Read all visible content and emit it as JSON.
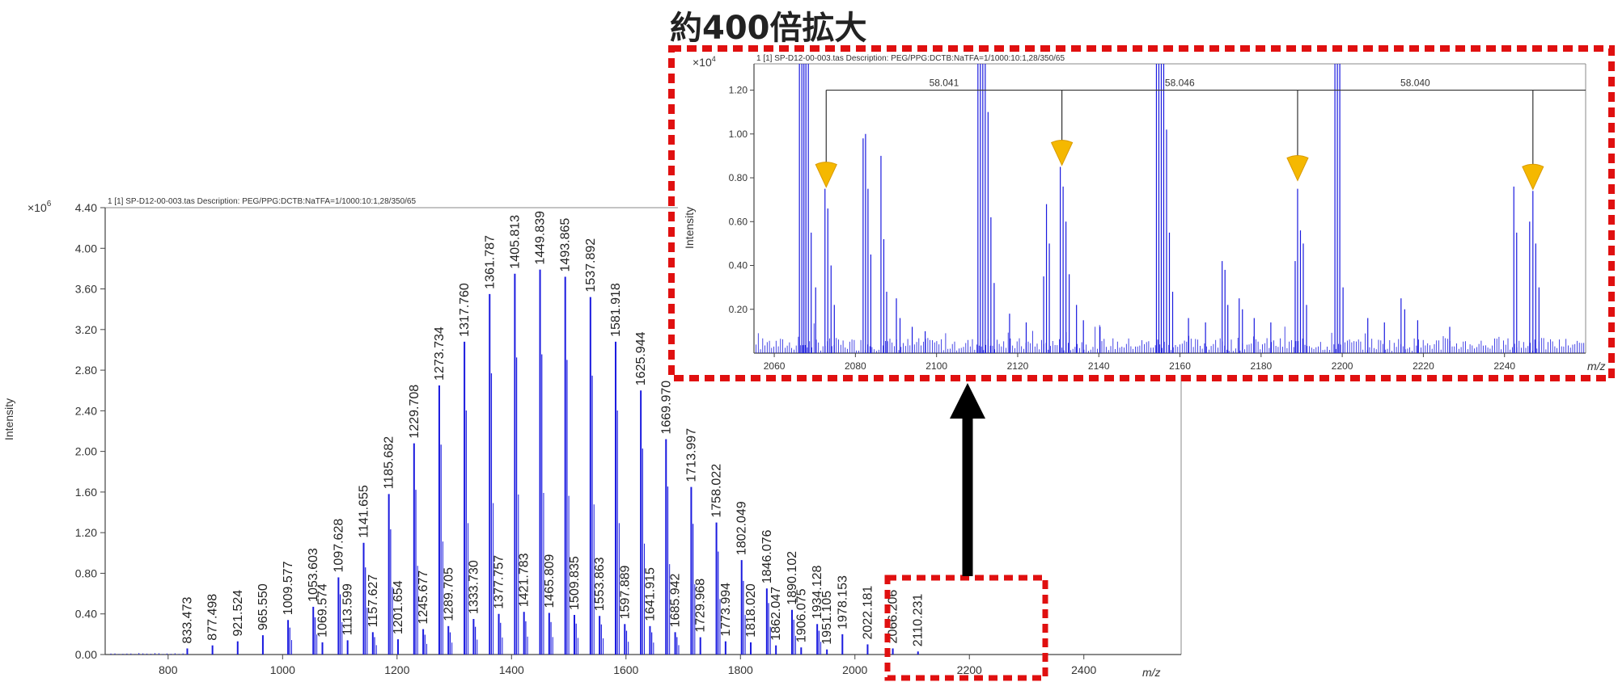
{
  "title": "約400倍拡大",
  "colors": {
    "peak": "#1a1adf",
    "marker": "#f5b800",
    "highlight": "#e01010",
    "arrow": "#000000"
  },
  "chart_data": [
    {
      "type": "bar",
      "header": "1 [1] SP-D12-00-003.tas   Description: PEG/PPG:DCTB:NaTFA=1/1000:10:1,28/350/65",
      "xlabel": "m/z",
      "ylabel": "Intensity",
      "y_multiplier": "×10",
      "y_exponent": "6",
      "xlim": [
        690,
        2570
      ],
      "ylim": [
        0,
        4.4
      ],
      "x_ticks": [
        800,
        1000,
        1200,
        1400,
        1600,
        1800,
        2000,
        2200,
        2400
      ],
      "y_ticks": [
        "0.00",
        "0.40",
        "0.80",
        "1.20",
        "1.60",
        "2.00",
        "2.40",
        "2.80",
        "3.20",
        "3.60",
        "4.00",
        "4.40"
      ],
      "labeled_peaks": [
        {
          "x": 833.473,
          "y": 0.06,
          "label": "833.473"
        },
        {
          "x": 877.498,
          "y": 0.09,
          "label": "877.498"
        },
        {
          "x": 921.524,
          "y": 0.13,
          "label": "921.524"
        },
        {
          "x": 965.55,
          "y": 0.19,
          "label": "965.550"
        },
        {
          "x": 1009.577,
          "y": 0.34,
          "label": "1009.577"
        },
        {
          "x": 1053.603,
          "y": 0.47,
          "label": "1053.603"
        },
        {
          "x": 1069.574,
          "y": 0.12,
          "label": "1069.574"
        },
        {
          "x": 1097.628,
          "y": 0.76,
          "label": "1097.628"
        },
        {
          "x": 1113.599,
          "y": 0.14,
          "label": "1113.599"
        },
        {
          "x": 1141.655,
          "y": 1.1,
          "label": "1141.655"
        },
        {
          "x": 1157.627,
          "y": 0.22,
          "label": "1157.627"
        },
        {
          "x": 1185.682,
          "y": 1.58,
          "label": "1185.682"
        },
        {
          "x": 1201.654,
          "y": 0.15,
          "label": "1201.654"
        },
        {
          "x": 1229.708,
          "y": 2.08,
          "label": "1229.708"
        },
        {
          "x": 1245.677,
          "y": 0.25,
          "label": "1245.677"
        },
        {
          "x": 1273.734,
          "y": 2.65,
          "label": "1273.734"
        },
        {
          "x": 1289.705,
          "y": 0.28,
          "label": "1289.705"
        },
        {
          "x": 1317.76,
          "y": 3.08,
          "label": "1317.760"
        },
        {
          "x": 1333.73,
          "y": 0.35,
          "label": "1333.730"
        },
        {
          "x": 1361.787,
          "y": 3.55,
          "label": "1361.787"
        },
        {
          "x": 1377.757,
          "y": 0.4,
          "label": "1377.757"
        },
        {
          "x": 1405.813,
          "y": 3.75,
          "label": "1405.813"
        },
        {
          "x": 1421.783,
          "y": 0.42,
          "label": "1421.783"
        },
        {
          "x": 1449.839,
          "y": 3.79,
          "label": "1449.839"
        },
        {
          "x": 1465.809,
          "y": 0.41,
          "label": "1465.809"
        },
        {
          "x": 1493.865,
          "y": 3.72,
          "label": "1493.865"
        },
        {
          "x": 1509.835,
          "y": 0.39,
          "label": "1509.835"
        },
        {
          "x": 1537.892,
          "y": 3.52,
          "label": "1537.892"
        },
        {
          "x": 1553.863,
          "y": 0.38,
          "label": "1553.863"
        },
        {
          "x": 1581.918,
          "y": 3.08,
          "label": "1581.918"
        },
        {
          "x": 1597.889,
          "y": 0.3,
          "label": "1597.889"
        },
        {
          "x": 1625.944,
          "y": 2.6,
          "label": "1625.944"
        },
        {
          "x": 1641.915,
          "y": 0.28,
          "label": "1641.915"
        },
        {
          "x": 1669.97,
          "y": 2.12,
          "label": "1669.970"
        },
        {
          "x": 1685.942,
          "y": 0.22,
          "label": "1685.942"
        },
        {
          "x": 1713.997,
          "y": 1.65,
          "label": "1713.997"
        },
        {
          "x": 1729.968,
          "y": 0.17,
          "label": "1729.968"
        },
        {
          "x": 1758.022,
          "y": 1.3,
          "label": "1758.022"
        },
        {
          "x": 1773.994,
          "y": 0.13,
          "label": "1773.994"
        },
        {
          "x": 1802.049,
          "y": 0.93,
          "label": "1802.049"
        },
        {
          "x": 1818.02,
          "y": 0.12,
          "label": "1818.020"
        },
        {
          "x": 1846.076,
          "y": 0.65,
          "label": "1846.076"
        },
        {
          "x": 1862.047,
          "y": 0.09,
          "label": "1862.047"
        },
        {
          "x": 1890.102,
          "y": 0.44,
          "label": "1890.102"
        },
        {
          "x": 1906.075,
          "y": 0.07,
          "label": "1906.075"
        },
        {
          "x": 1934.128,
          "y": 0.3,
          "label": "1934.128"
        },
        {
          "x": 1951.105,
          "y": 0.05,
          "label": "1951.105"
        },
        {
          "x": 1978.153,
          "y": 0.2,
          "label": "1978.153"
        },
        {
          "x": 2022.181,
          "y": 0.1,
          "label": "2022.181"
        },
        {
          "x": 2066.206,
          "y": 0.06,
          "label": "2066.206"
        },
        {
          "x": 2110.231,
          "y": 0.03,
          "label": "2110.231"
        }
      ]
    },
    {
      "type": "bar",
      "header": "1 [1] SP-D12-00-003.tas   Description: PEG/PPG:DCTB:NaTFA=1/1000:10:1,28/350/65",
      "xlabel": "m/z",
      "ylabel": "Intensity",
      "y_multiplier": "×10",
      "y_exponent": "4",
      "xlim": [
        2055,
        2260
      ],
      "ylim": [
        0,
        1.32
      ],
      "x_ticks": [
        2060,
        2080,
        2100,
        2120,
        2140,
        2160,
        2180,
        2200,
        2220,
        2240
      ],
      "y_ticks": [
        "0.20",
        "0.40",
        "0.60",
        "0.80",
        "1.00",
        "1.20"
      ],
      "spacing_y": 1.2,
      "spacings": [
        {
          "from": 2072.8,
          "to": 2130.9,
          "label": "58.041"
        },
        {
          "from": 2130.9,
          "to": 2189.0,
          "label": "58.046"
        },
        {
          "from": 2189.0,
          "to": 2247.0,
          "label": "58.040"
        }
      ],
      "markers": [
        {
          "x": 2072.8,
          "y": 0.75
        },
        {
          "x": 2130.9,
          "y": 0.85
        },
        {
          "x": 2189.0,
          "y": 0.78
        },
        {
          "x": 2247.0,
          "y": 0.74
        }
      ],
      "peaks": [
        {
          "x": 2066.2,
          "y": 1.32
        },
        {
          "x": 2066.8,
          "y": 1.32
        },
        {
          "x": 2067.3,
          "y": 1.32
        },
        {
          "x": 2067.8,
          "y": 1.32
        },
        {
          "x": 2068.4,
          "y": 1.32
        },
        {
          "x": 2069.1,
          "y": 0.55
        },
        {
          "x": 2070.2,
          "y": 0.3
        },
        {
          "x": 2072.5,
          "y": 0.75
        },
        {
          "x": 2073.2,
          "y": 0.66
        },
        {
          "x": 2074.0,
          "y": 0.4
        },
        {
          "x": 2074.8,
          "y": 0.22
        },
        {
          "x": 2081.9,
          "y": 0.98
        },
        {
          "x": 2082.5,
          "y": 1.0
        },
        {
          "x": 2083.1,
          "y": 0.75
        },
        {
          "x": 2083.8,
          "y": 0.45
        },
        {
          "x": 2086.3,
          "y": 0.9
        },
        {
          "x": 2087.0,
          "y": 0.52
        },
        {
          "x": 2087.7,
          "y": 0.28
        },
        {
          "x": 2090.1,
          "y": 0.25
        },
        {
          "x": 2091.0,
          "y": 0.16
        },
        {
          "x": 2094.0,
          "y": 0.12
        },
        {
          "x": 2097.2,
          "y": 0.1
        },
        {
          "x": 2110.2,
          "y": 1.32
        },
        {
          "x": 2110.8,
          "y": 1.32
        },
        {
          "x": 2111.4,
          "y": 1.32
        },
        {
          "x": 2112.0,
          "y": 1.32
        },
        {
          "x": 2112.7,
          "y": 1.1
        },
        {
          "x": 2113.4,
          "y": 0.62
        },
        {
          "x": 2114.2,
          "y": 0.32
        },
        {
          "x": 2118.0,
          "y": 0.18
        },
        {
          "x": 2122.1,
          "y": 0.14
        },
        {
          "x": 2126.4,
          "y": 0.35
        },
        {
          "x": 2127.1,
          "y": 0.68
        },
        {
          "x": 2127.8,
          "y": 0.5
        },
        {
          "x": 2130.5,
          "y": 0.85
        },
        {
          "x": 2131.2,
          "y": 0.76
        },
        {
          "x": 2131.9,
          "y": 0.6
        },
        {
          "x": 2132.7,
          "y": 0.36
        },
        {
          "x": 2134.5,
          "y": 0.22
        },
        {
          "x": 2136.2,
          "y": 0.15
        },
        {
          "x": 2140.3,
          "y": 0.12
        },
        {
          "x": 2154.2,
          "y": 1.32
        },
        {
          "x": 2154.8,
          "y": 1.32
        },
        {
          "x": 2155.4,
          "y": 1.32
        },
        {
          "x": 2156.0,
          "y": 1.32
        },
        {
          "x": 2156.7,
          "y": 1.02
        },
        {
          "x": 2157.4,
          "y": 0.55
        },
        {
          "x": 2158.2,
          "y": 0.28
        },
        {
          "x": 2162.1,
          "y": 0.16
        },
        {
          "x": 2166.3,
          "y": 0.14
        },
        {
          "x": 2170.4,
          "y": 0.42
        },
        {
          "x": 2171.1,
          "y": 0.38
        },
        {
          "x": 2171.8,
          "y": 0.22
        },
        {
          "x": 2174.6,
          "y": 0.25
        },
        {
          "x": 2175.4,
          "y": 0.2
        },
        {
          "x": 2178.3,
          "y": 0.16
        },
        {
          "x": 2182.4,
          "y": 0.14
        },
        {
          "x": 2188.4,
          "y": 0.42
        },
        {
          "x": 2189.0,
          "y": 0.75
        },
        {
          "x": 2189.7,
          "y": 0.56
        },
        {
          "x": 2190.4,
          "y": 0.5
        },
        {
          "x": 2191.2,
          "y": 0.22
        },
        {
          "x": 2198.2,
          "y": 1.32
        },
        {
          "x": 2198.8,
          "y": 1.32
        },
        {
          "x": 2199.4,
          "y": 1.32
        },
        {
          "x": 2200.2,
          "y": 0.3
        },
        {
          "x": 2206.3,
          "y": 0.16
        },
        {
          "x": 2210.4,
          "y": 0.14
        },
        {
          "x": 2214.5,
          "y": 0.25
        },
        {
          "x": 2215.4,
          "y": 0.2
        },
        {
          "x": 2218.6,
          "y": 0.15
        },
        {
          "x": 2226.5,
          "y": 0.12
        },
        {
          "x": 2242.3,
          "y": 0.76
        },
        {
          "x": 2243.0,
          "y": 0.55
        },
        {
          "x": 2246.2,
          "y": 0.6
        },
        {
          "x": 2247.0,
          "y": 0.74
        },
        {
          "x": 2247.7,
          "y": 0.5
        },
        {
          "x": 2248.5,
          "y": 0.3
        }
      ]
    }
  ]
}
